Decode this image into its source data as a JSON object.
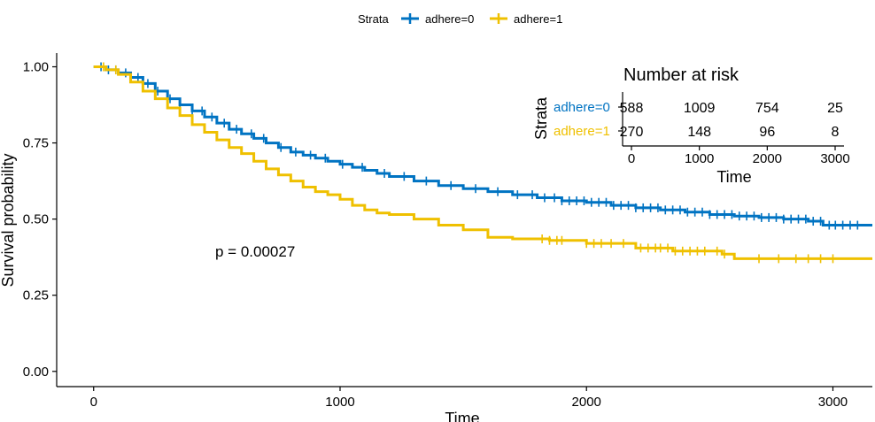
{
  "chart_data": {
    "type": "line",
    "subtype": "kaplan-meier",
    "xlabel": "Time",
    "ylabel": "Survival probability",
    "xlim": [
      -150,
      3160
    ],
    "ylim": [
      -0.05,
      1.045
    ],
    "x_ticks": [
      0,
      1000,
      2000,
      3000
    ],
    "y_ticks": [
      0.0,
      0.25,
      0.5,
      0.75,
      1.0
    ],
    "y_tick_labels": [
      "0.00",
      "0.25",
      "0.50",
      "0.75",
      "1.00"
    ],
    "grid": false,
    "legend": {
      "title": "Strata",
      "position": "top",
      "entries": [
        "adhere=0",
        "adhere=1"
      ]
    },
    "annotation": "p = 0.00027",
    "series": [
      {
        "name": "adhere=0",
        "color": "#0073C2",
        "points": [
          [
            0,
            1.0
          ],
          [
            50,
            0.99
          ],
          [
            100,
            0.98
          ],
          [
            150,
            0.965
          ],
          [
            200,
            0.945
          ],
          [
            250,
            0.92
          ],
          [
            300,
            0.895
          ],
          [
            350,
            0.875
          ],
          [
            400,
            0.855
          ],
          [
            450,
            0.835
          ],
          [
            500,
            0.815
          ],
          [
            550,
            0.795
          ],
          [
            600,
            0.78
          ],
          [
            650,
            0.765
          ],
          [
            700,
            0.75
          ],
          [
            750,
            0.735
          ],
          [
            800,
            0.72
          ],
          [
            850,
            0.71
          ],
          [
            900,
            0.7
          ],
          [
            950,
            0.69
          ],
          [
            1000,
            0.68
          ],
          [
            1050,
            0.67
          ],
          [
            1100,
            0.66
          ],
          [
            1150,
            0.65
          ],
          [
            1200,
            0.64
          ],
          [
            1300,
            0.625
          ],
          [
            1400,
            0.61
          ],
          [
            1500,
            0.6
          ],
          [
            1600,
            0.59
          ],
          [
            1700,
            0.58
          ],
          [
            1800,
            0.57
          ],
          [
            1900,
            0.56
          ],
          [
            2000,
            0.555
          ],
          [
            2100,
            0.545
          ],
          [
            2200,
            0.537
          ],
          [
            2300,
            0.53
          ],
          [
            2400,
            0.523
          ],
          [
            2500,
            0.515
          ],
          [
            2600,
            0.51
          ],
          [
            2700,
            0.505
          ],
          [
            2800,
            0.5
          ],
          [
            2900,
            0.493
          ],
          [
            2960,
            0.48
          ],
          [
            3160,
            0.48
          ]
        ],
        "censor_times": [
          30,
          60,
          90,
          130,
          180,
          220,
          260,
          310,
          350,
          400,
          440,
          480,
          530,
          580,
          640,
          690,
          760,
          820,
          880,
          940,
          1010,
          1090,
          1180,
          1260,
          1350,
          1450,
          1550,
          1640,
          1720,
          1780,
          1830,
          1870,
          1900,
          1930,
          1960,
          1990,
          2020,
          2050,
          2080,
          2110,
          2140,
          2170,
          2200,
          2230,
          2260,
          2290,
          2320,
          2350,
          2380,
          2410,
          2440,
          2470,
          2500,
          2530,
          2560,
          2590,
          2620,
          2650,
          2680,
          2710,
          2740,
          2770,
          2800,
          2830,
          2860,
          2890,
          2920,
          2950,
          2985,
          3010,
          3040,
          3070,
          3100
        ]
      },
      {
        "name": "adhere=1",
        "color": "#EFC000",
        "points": [
          [
            0,
            1.0
          ],
          [
            50,
            0.99
          ],
          [
            100,
            0.975
          ],
          [
            150,
            0.95
          ],
          [
            200,
            0.92
          ],
          [
            250,
            0.895
          ],
          [
            300,
            0.865
          ],
          [
            350,
            0.84
          ],
          [
            400,
            0.81
          ],
          [
            450,
            0.785
          ],
          [
            500,
            0.76
          ],
          [
            550,
            0.735
          ],
          [
            600,
            0.715
          ],
          [
            650,
            0.69
          ],
          [
            700,
            0.665
          ],
          [
            750,
            0.645
          ],
          [
            800,
            0.625
          ],
          [
            850,
            0.605
          ],
          [
            900,
            0.59
          ],
          [
            950,
            0.58
          ],
          [
            1000,
            0.565
          ],
          [
            1050,
            0.545
          ],
          [
            1100,
            0.53
          ],
          [
            1150,
            0.52
          ],
          [
            1200,
            0.515
          ],
          [
            1300,
            0.5
          ],
          [
            1400,
            0.48
          ],
          [
            1500,
            0.465
          ],
          [
            1600,
            0.44
          ],
          [
            1700,
            0.435
          ],
          [
            1800,
            0.435
          ],
          [
            1850,
            0.43
          ],
          [
            2000,
            0.42
          ],
          [
            2200,
            0.405
          ],
          [
            2350,
            0.395
          ],
          [
            2500,
            0.395
          ],
          [
            2550,
            0.385
          ],
          [
            2600,
            0.37
          ],
          [
            3160,
            0.37
          ]
        ],
        "censor_times": [
          40,
          90,
          1820,
          1850,
          1880,
          1900,
          2000,
          2030,
          2060,
          2100,
          2150,
          2220,
          2250,
          2280,
          2300,
          2330,
          2360,
          2390,
          2420,
          2450,
          2480,
          2530,
          2560,
          2700,
          2780,
          2850,
          2900,
          2950,
          3000
        ]
      }
    ]
  },
  "risk_table": {
    "title": "Number at risk",
    "ylabel": "Strata",
    "xlabel": "Time",
    "x_ticks": [
      0,
      1000,
      2000,
      3000
    ],
    "rows": [
      {
        "label": "adhere=0",
        "color": "#0073C2",
        "values": [
          "588",
          "1009",
          "754",
          "25"
        ]
      },
      {
        "label": "adhere=1",
        "color": "#EFC000",
        "values": [
          "270",
          "148",
          "96",
          "8"
        ]
      }
    ]
  }
}
